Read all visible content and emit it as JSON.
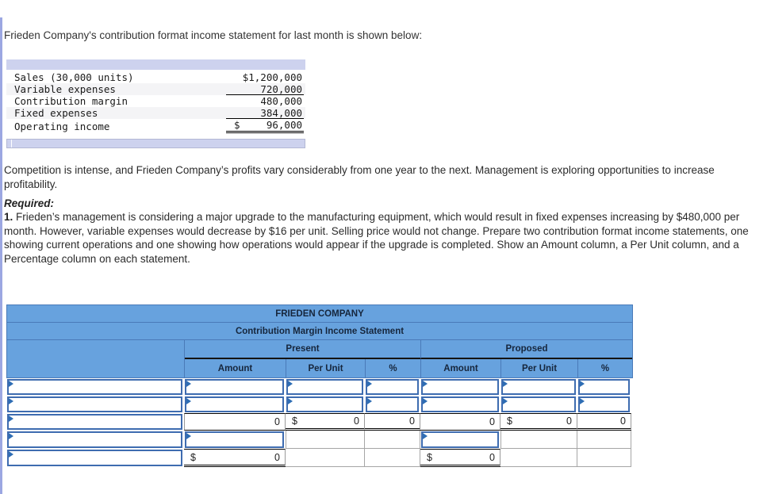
{
  "page": {
    "intro": "Frieden Company's contribution format income statement for last month is shown below:",
    "paragraph": "Competition is intense, and Frieden Company’s profits vary considerably from one year to the next. Management is exploring opportunities to increase profitability.",
    "required_label": "Required:",
    "item1_number": "1.",
    "item1_text": " Frieden’s management is considering a major upgrade to the manufacturing equipment, which would result in fixed expenses increasing by $480,000 per month. However, variable expenses would decrease by $16 per unit. Selling price would not change. Prepare two contribution format income statements, one showing current operations and one showing how operations would appear if the upgrade is completed. Show an Amount column, a Per Unit column, and a Percentage column on each statement."
  },
  "income_statement": {
    "rows": [
      {
        "label": "Sales (30,000 units)",
        "value": "$1,200,000"
      },
      {
        "label": "Variable expenses",
        "value": "720,000"
      },
      {
        "label": "Contribution margin",
        "value": "480,000"
      },
      {
        "label": "Fixed expenses",
        "value": "384,000"
      },
      {
        "label": "Operating income",
        "currency": "$",
        "value": "96,000"
      }
    ]
  },
  "worksheet": {
    "title": "FRIEDEN COMPANY",
    "subtitle": "Contribution Margin Income Statement",
    "group_present": "Present",
    "group_proposed": "Proposed",
    "col_amount": "Amount",
    "col_per_unit": "Per Unit",
    "col_percent": "%",
    "zero": "0",
    "dollar": "$"
  },
  "colors": {
    "header_blue": "#67a2de",
    "header_border": "#4a7ab8",
    "header_text": "#16263c",
    "input_border": "#3e6cb0",
    "input_flag": "#2e6db4",
    "page_stripe": "#9ca7e2",
    "band": "#cdd2ee",
    "alt_row": "#f4f4f6"
  }
}
